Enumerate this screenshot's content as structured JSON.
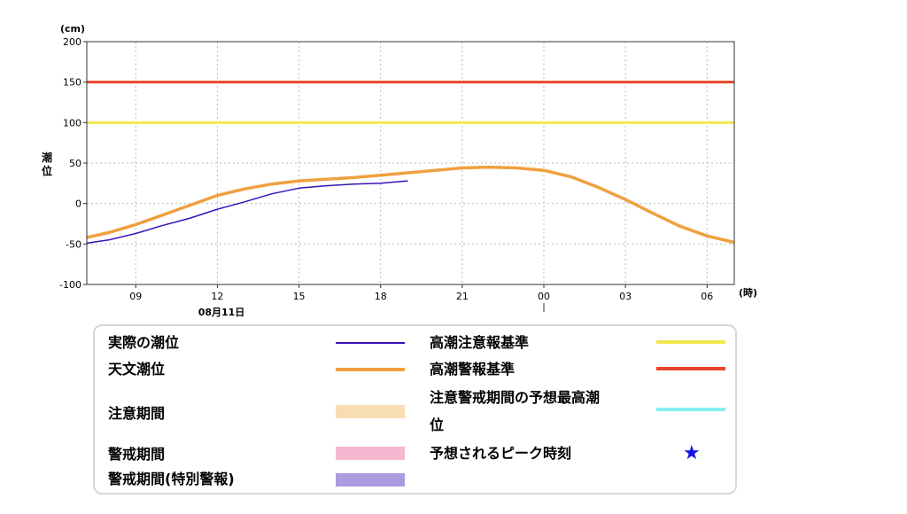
{
  "chart_data": {
    "type": "line",
    "y_unit": "(cm)",
    "ylabel": "潮位",
    "x_unit": "(時)",
    "date_label": "08月11日",
    "ylim": [
      -100,
      200
    ],
    "y_ticks": [
      200,
      150,
      100,
      50,
      0,
      -50,
      -100
    ],
    "x_tick_labels": [
      "09",
      "12",
      "15",
      "18",
      "21",
      "00",
      "03",
      "06"
    ],
    "x_range_hours": [
      7.2,
      31.0
    ],
    "x_tick_hours": [
      9,
      12,
      15,
      18,
      21,
      24,
      27,
      30
    ],
    "grid": true,
    "thresholds": [
      {
        "name": "高潮警報基準",
        "value": 150,
        "color": "#e8452b"
      },
      {
        "name": "高潮注意報基準",
        "value": 100,
        "color": "#f2e74f"
      }
    ],
    "series": [
      {
        "name": "実際の潮位",
        "color": "#3a12b5",
        "x_hours": [
          7.2,
          8.0,
          9.0,
          10.0,
          11.0,
          12.0,
          13.0,
          14.0,
          15.0,
          16.0,
          17.0,
          18.0,
          19.0
        ],
        "y": [
          -49,
          -45,
          -37,
          -27,
          -18,
          -7,
          2,
          12,
          19,
          22,
          24,
          25,
          28
        ]
      },
      {
        "name": "天文潮位",
        "color": "#f0a040",
        "x_hours": [
          7.2,
          8.0,
          9.0,
          10.0,
          11.0,
          12.0,
          13.0,
          14.0,
          15.0,
          16.0,
          17.0,
          18.0,
          19.0,
          20.0,
          21.0,
          22.0,
          23.0,
          24.0,
          25.0,
          26.0,
          27.0,
          28.0,
          29.0,
          30.0,
          31.0
        ],
        "y": [
          -42,
          -36,
          -26,
          -14,
          -2,
          10,
          18,
          24,
          28,
          30,
          32,
          35,
          38,
          41,
          44,
          45,
          44,
          41,
          33,
          20,
          5,
          -12,
          -28,
          -40,
          -48
        ]
      }
    ]
  },
  "legend": {
    "actual": "実際の潮位",
    "astronomical": "天文潮位",
    "caution_period": "注意期間",
    "warning_period": "警戒期間",
    "special_warning_period": "警戒期間(特別警報)",
    "advisory_standard": "高潮注意報基準",
    "warning_standard": "高潮警報基準",
    "predicted_max_line1": "注意警戒期間の予想最高潮",
    "predicted_max_line2": "位",
    "peak_time": "予想されるピーク時刻",
    "star": "★"
  },
  "colors": {
    "actual": "#3a12b5",
    "astronomical": "#f0a040",
    "caution_period": "#f8ddb3",
    "warning_period": "#f4b8d0",
    "special_warning_period": "#ad9be0",
    "advisory_standard": "#f2e74f",
    "warning_standard": "#e8452b",
    "predicted_max": "#84f0f0",
    "star": "#1010e0"
  }
}
